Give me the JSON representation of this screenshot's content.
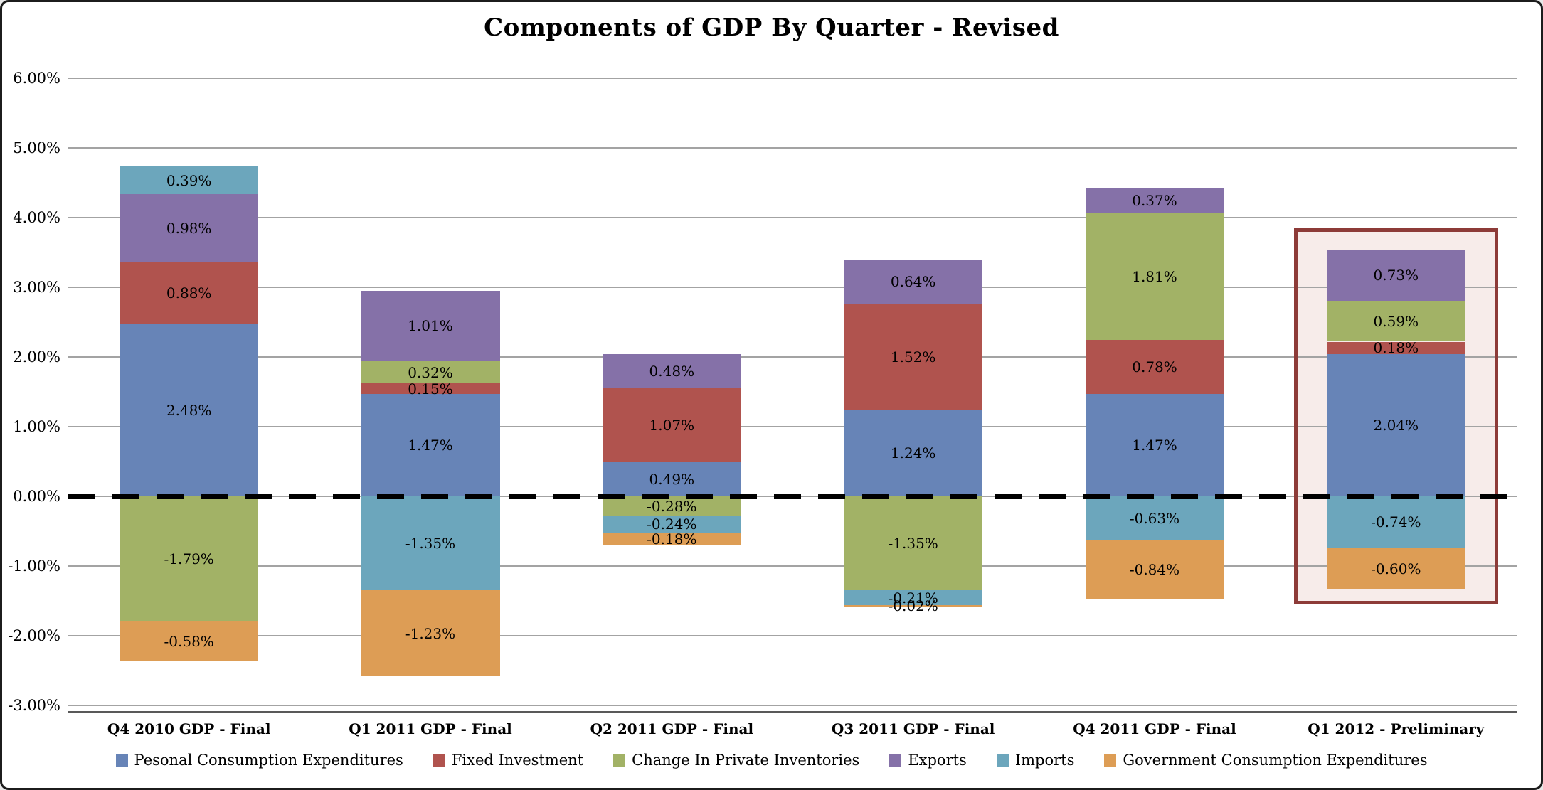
{
  "chart_data": {
    "type": "bar",
    "stacked": true,
    "title": "Components of GDP By Quarter - Revised",
    "categories": [
      "Q4 2010 GDP - Final",
      "Q1 2011 GDP - Final",
      "Q2 2011 GDP - Final",
      "Q3 2011 GDP - Final",
      "Q4 2011 GDP - Final",
      "Q1 2012 - Preliminary"
    ],
    "series": [
      {
        "name": "Pesonal Consumption Expenditures",
        "color": "#6784b7",
        "values": [
          2.48,
          1.47,
          0.49,
          1.24,
          1.47,
          2.04
        ]
      },
      {
        "name": "Fixed Investment",
        "color": "#b0534e",
        "values": [
          0.88,
          0.15,
          1.07,
          1.52,
          0.78,
          0.18
        ]
      },
      {
        "name": "Change In Private Inventories",
        "color": "#a2b266",
        "values": [
          -1.79,
          0.32,
          -0.28,
          -1.35,
          1.81,
          0.59
        ]
      },
      {
        "name": "Exports",
        "color": "#8571a8",
        "values": [
          0.98,
          1.01,
          0.48,
          0.64,
          0.37,
          0.73
        ]
      },
      {
        "name": "Imports",
        "color": "#6ca6bc",
        "values": [
          0.39,
          -1.35,
          -0.24,
          -0.21,
          -0.63,
          -0.74
        ]
      },
      {
        "name": "Government Consumption Expenditures",
        "color": "#dd9d55",
        "values": [
          -0.58,
          -1.23,
          -0.18,
          -0.02,
          -0.84,
          -0.6
        ]
      }
    ],
    "y_axis": {
      "min": -3,
      "max": 6,
      "step": 1,
      "tick_labels": [
        "6.00%",
        "5.00%",
        "4.00%",
        "3.00%",
        "2.00%",
        "1.00%",
        "0.00%",
        "-1.00%",
        "-2.00%",
        "-3.00%"
      ]
    },
    "grid": true,
    "gridline_color": "#a3a3a3",
    "zero_line": {
      "style": "dashed",
      "color": "#000000"
    },
    "data_label_format": "0.00%",
    "legend_position": "bottom",
    "highlight": {
      "category_index": 5,
      "border_color": "#8d3b38",
      "fill_color": "#f7ecea",
      "value_top": 3.85,
      "value_bottom": -1.55
    }
  }
}
